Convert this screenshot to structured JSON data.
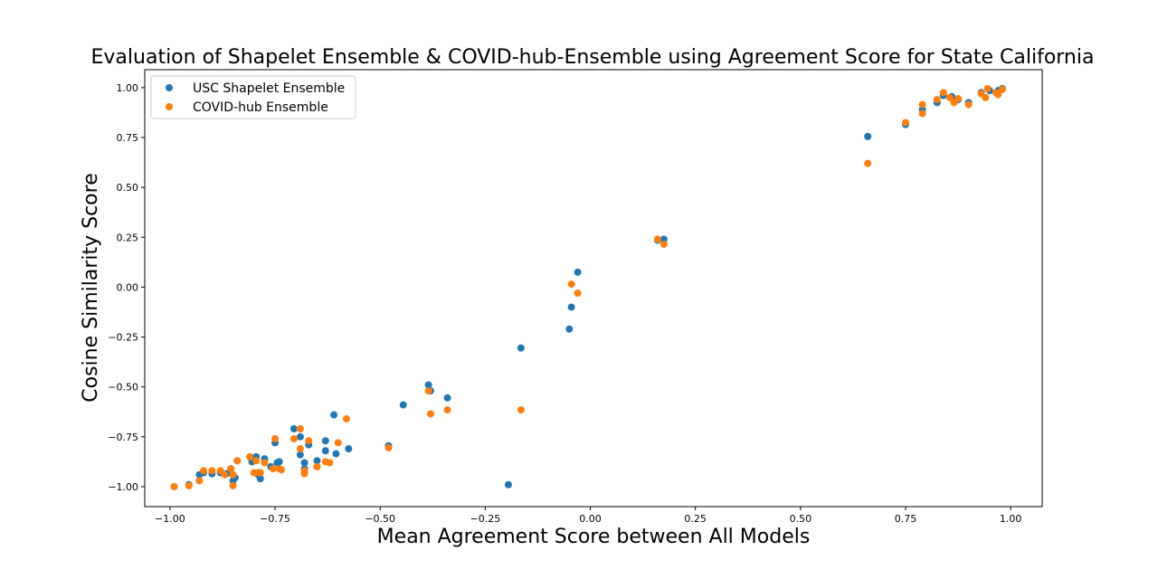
{
  "chart_data": {
    "type": "scatter",
    "title": "Evaluation of Shapelet Ensemble & COVID-hub-Ensemble using Agreement Score for State California",
    "xlabel": "Mean Agreement Score between All Models",
    "ylabel": "Cosine Similarity Score",
    "xlim": [
      -1.06,
      1.075
    ],
    "ylim": [
      -1.1,
      1.09
    ],
    "xticks": [
      -1.0,
      -0.75,
      -0.5,
      -0.25,
      0.0,
      0.25,
      0.5,
      0.75,
      1.0
    ],
    "xtick_labels": [
      "−1.00",
      "−0.75",
      "−0.50",
      "−0.25",
      "0.00",
      "0.25",
      "0.50",
      "0.75",
      "1.00"
    ],
    "yticks": [
      -1.0,
      -0.75,
      -0.5,
      -0.25,
      0.0,
      0.25,
      0.5,
      0.75,
      1.0
    ],
    "ytick_labels": [
      "−1.00",
      "−0.75",
      "−0.50",
      "−0.25",
      "0.00",
      "0.25",
      "0.50",
      "0.75",
      "1.00"
    ],
    "grid": false,
    "legend_position": "top-left",
    "series": [
      {
        "name": "USC Shapelet Ensemble",
        "color": "#1f77b4",
        "points": [
          [
            -0.99,
            -1.0
          ],
          [
            -0.955,
            -0.99
          ],
          [
            -0.93,
            -0.94
          ],
          [
            -0.92,
            -0.93
          ],
          [
            -0.9,
            -0.935
          ],
          [
            -0.88,
            -0.93
          ],
          [
            -0.865,
            -0.935
          ],
          [
            -0.855,
            -0.91
          ],
          [
            -0.85,
            -0.97
          ],
          [
            -0.845,
            -0.955
          ],
          [
            -0.84,
            -0.87
          ],
          [
            -0.805,
            -0.875
          ],
          [
            -0.8,
            -0.855
          ],
          [
            -0.795,
            -0.85
          ],
          [
            -0.79,
            -0.94
          ],
          [
            -0.785,
            -0.96
          ],
          [
            -0.775,
            -0.86
          ],
          [
            -0.76,
            -0.9
          ],
          [
            -0.75,
            -0.78
          ],
          [
            -0.745,
            -0.88
          ],
          [
            -0.74,
            -0.875
          ],
          [
            -0.705,
            -0.71
          ],
          [
            -0.69,
            -0.75
          ],
          [
            -0.69,
            -0.84
          ],
          [
            -0.68,
            -0.88
          ],
          [
            -0.68,
            -0.91
          ],
          [
            -0.67,
            -0.79
          ],
          [
            -0.65,
            -0.87
          ],
          [
            -0.63,
            -0.77
          ],
          [
            -0.63,
            -0.82
          ],
          [
            -0.61,
            -0.64
          ],
          [
            -0.605,
            -0.835
          ],
          [
            -0.575,
            -0.81
          ],
          [
            -0.48,
            -0.795
          ],
          [
            -0.445,
            -0.59
          ],
          [
            -0.385,
            -0.49
          ],
          [
            -0.38,
            -0.52
          ],
          [
            -0.34,
            -0.555
          ],
          [
            -0.195,
            -0.99
          ],
          [
            -0.165,
            -0.305
          ],
          [
            -0.05,
            -0.21
          ],
          [
            -0.045,
            -0.1
          ],
          [
            -0.03,
            0.075
          ],
          [
            0.16,
            0.235
          ],
          [
            0.175,
            0.24
          ],
          [
            0.66,
            0.755
          ],
          [
            0.75,
            0.815
          ],
          [
            0.79,
            0.89
          ],
          [
            0.825,
            0.925
          ],
          [
            0.84,
            0.96
          ],
          [
            0.86,
            0.955
          ],
          [
            0.875,
            0.94
          ],
          [
            0.9,
            0.925
          ],
          [
            0.93,
            0.975
          ],
          [
            0.95,
            0.985
          ],
          [
            0.97,
            0.985
          ],
          [
            0.98,
            0.995
          ]
        ]
      },
      {
        "name": "COVID-hub Ensemble",
        "color": "#ff7f0e",
        "points": [
          [
            -0.99,
            -1.0
          ],
          [
            -0.955,
            -0.995
          ],
          [
            -0.93,
            -0.97
          ],
          [
            -0.92,
            -0.92
          ],
          [
            -0.9,
            -0.92
          ],
          [
            -0.88,
            -0.92
          ],
          [
            -0.87,
            -0.94
          ],
          [
            -0.855,
            -0.91
          ],
          [
            -0.85,
            -0.94
          ],
          [
            -0.85,
            -0.995
          ],
          [
            -0.84,
            -0.87
          ],
          [
            -0.81,
            -0.85
          ],
          [
            -0.8,
            -0.93
          ],
          [
            -0.795,
            -0.87
          ],
          [
            -0.79,
            -0.93
          ],
          [
            -0.785,
            -0.93
          ],
          [
            -0.775,
            -0.88
          ],
          [
            -0.755,
            -0.91
          ],
          [
            -0.75,
            -0.76
          ],
          [
            -0.74,
            -0.91
          ],
          [
            -0.735,
            -0.915
          ],
          [
            -0.705,
            -0.76
          ],
          [
            -0.69,
            -0.71
          ],
          [
            -0.69,
            -0.81
          ],
          [
            -0.68,
            -0.92
          ],
          [
            -0.68,
            -0.935
          ],
          [
            -0.67,
            -0.77
          ],
          [
            -0.65,
            -0.9
          ],
          [
            -0.63,
            -0.875
          ],
          [
            -0.62,
            -0.88
          ],
          [
            -0.6,
            -0.78
          ],
          [
            -0.58,
            -0.66
          ],
          [
            -0.48,
            -0.805
          ],
          [
            -0.385,
            -0.52
          ],
          [
            -0.38,
            -0.635
          ],
          [
            -0.34,
            -0.615
          ],
          [
            -0.165,
            -0.615
          ],
          [
            -0.045,
            0.015
          ],
          [
            -0.03,
            -0.03
          ],
          [
            0.16,
            0.24
          ],
          [
            0.175,
            0.215
          ],
          [
            0.66,
            0.62
          ],
          [
            0.75,
            0.825
          ],
          [
            0.79,
            0.87
          ],
          [
            0.79,
            0.915
          ],
          [
            0.825,
            0.94
          ],
          [
            0.84,
            0.975
          ],
          [
            0.855,
            0.95
          ],
          [
            0.865,
            0.925
          ],
          [
            0.875,
            0.945
          ],
          [
            0.9,
            0.915
          ],
          [
            0.93,
            0.97
          ],
          [
            0.94,
            0.95
          ],
          [
            0.945,
            0.995
          ],
          [
            0.965,
            0.975
          ],
          [
            0.97,
            0.965
          ],
          [
            0.98,
            0.99
          ]
        ]
      }
    ]
  }
}
